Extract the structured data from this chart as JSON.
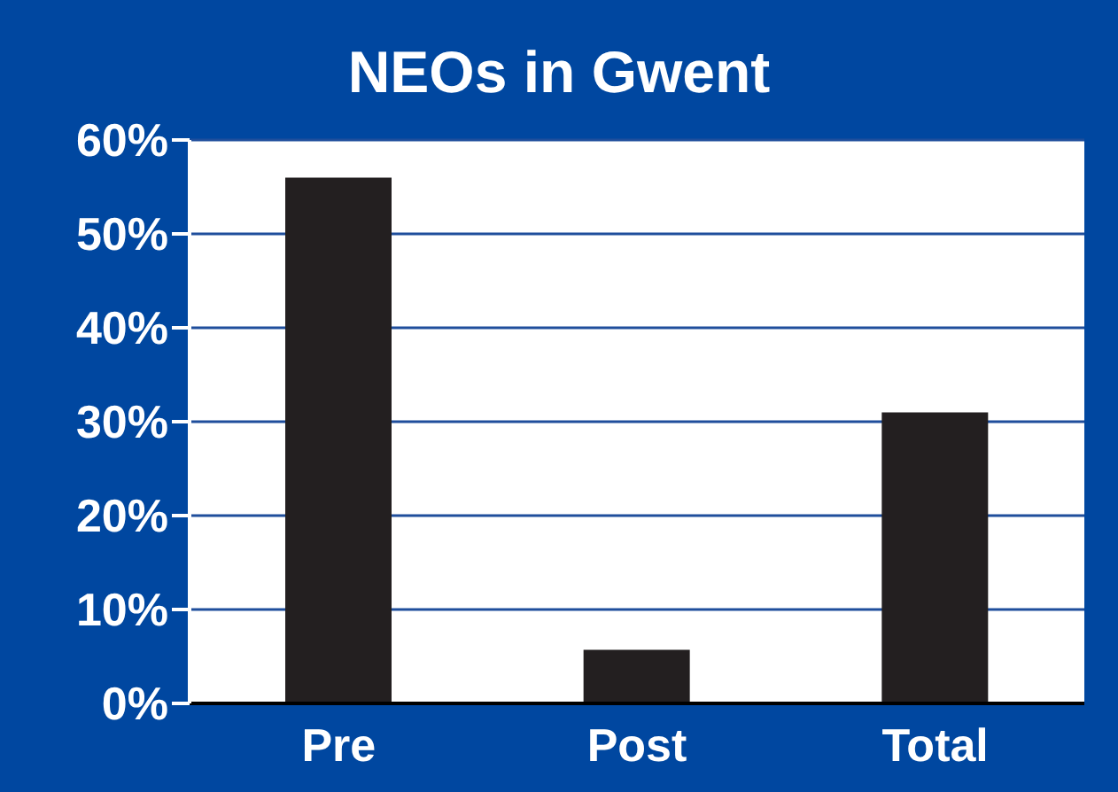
{
  "chart_data": {
    "type": "bar",
    "title": "NEOs in Gwent",
    "categories": [
      "Pre",
      "Post",
      "Total"
    ],
    "values": [
      56,
      5.7,
      31
    ],
    "color": "#231f20",
    "ylim": [
      0,
      60
    ],
    "yticks": [
      {
        "value": 0,
        "label": "0%"
      },
      {
        "value": 10,
        "label": "10%"
      },
      {
        "value": 20,
        "label": "20%"
      },
      {
        "value": 30,
        "label": "30%"
      },
      {
        "value": 40,
        "label": "40%"
      },
      {
        "value": 50,
        "label": "50%"
      },
      {
        "value": 60,
        "label": "60%"
      }
    ],
    "grid": "y"
  }
}
